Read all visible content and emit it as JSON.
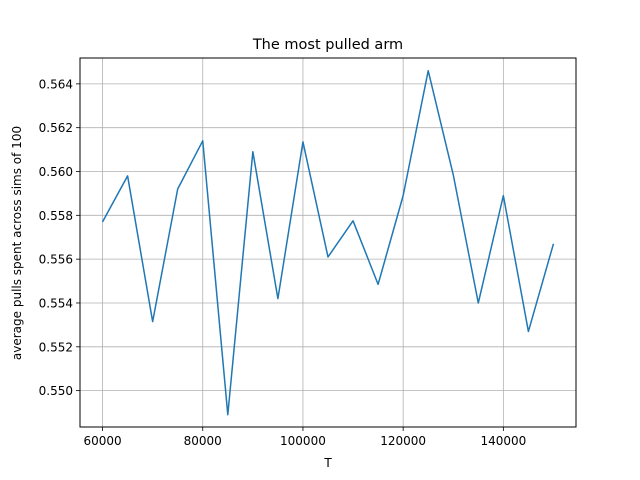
{
  "chart_data": {
    "type": "line",
    "title": "The most pulled arm",
    "xlabel": "T",
    "ylabel": "average pulls spent across sims of 100",
    "xlim": [
      55500,
      154500
    ],
    "ylim": [
      0.54834,
      0.56518
    ],
    "grid": true,
    "x_ticks": [
      60000,
      80000,
      100000,
      120000,
      140000
    ],
    "x_tick_labels": [
      "60000",
      "80000",
      "100000",
      "120000",
      "140000"
    ],
    "y_ticks": [
      0.55,
      0.552,
      0.554,
      0.556,
      0.558,
      0.56,
      0.562,
      0.564
    ],
    "y_tick_labels": [
      "0.550",
      "0.552",
      "0.554",
      "0.556",
      "0.558",
      "0.560",
      "0.562",
      "0.564"
    ],
    "series": [
      {
        "name": "most pulled arm",
        "color": "#1f77b4",
        "x": [
          60000,
          65000,
          70000,
          75000,
          80000,
          85000,
          90000,
          95000,
          100000,
          105000,
          110000,
          115000,
          120000,
          125000,
          130000,
          135000,
          140000,
          145000,
          150000
        ],
        "y": [
          0.5577,
          0.5598,
          0.55315,
          0.5592,
          0.5614,
          0.5489,
          0.5609,
          0.5542,
          0.56135,
          0.5561,
          0.55775,
          0.55485,
          0.5589,
          0.5646,
          0.55985,
          0.554,
          0.5589,
          0.5527,
          0.5567
        ]
      }
    ]
  }
}
